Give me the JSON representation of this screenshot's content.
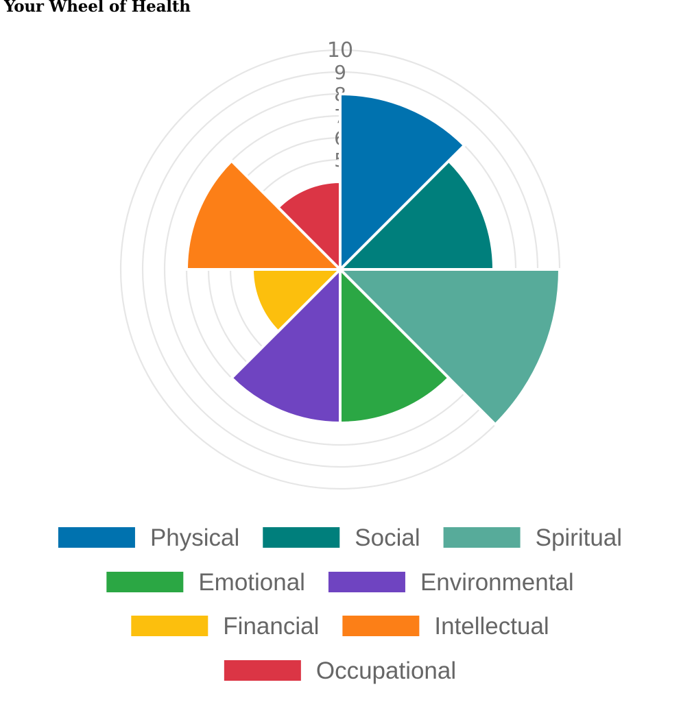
{
  "page_title": "Your Wheel of Health",
  "chart_data": {
    "type": "polar-area",
    "title": "",
    "r_max": 10,
    "r_ticks": [
      5,
      6,
      7,
      8,
      9,
      10
    ],
    "grid": true,
    "legend_position": "bottom",
    "categories": [
      "Physical",
      "Social",
      "Spiritual",
      "Emotional",
      "Environmental",
      "Financial",
      "Intellectual",
      "Occupational"
    ],
    "values": [
      8,
      7,
      10,
      7,
      7,
      4,
      7,
      4
    ],
    "colors": [
      "#0072AF",
      "#007F7C",
      "#57AB9A",
      "#2BA744",
      "#6F44C1",
      "#FCBF0D",
      "#FC7F17",
      "#DB3545"
    ]
  }
}
